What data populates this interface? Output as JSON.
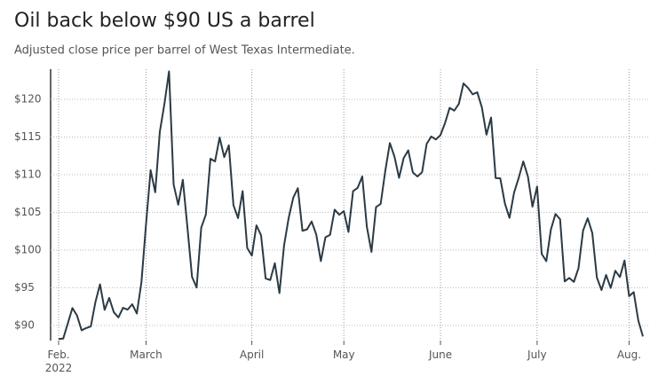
{
  "chart_data": {
    "type": "line",
    "title": "Oil back below $90 US a barrel",
    "subtitle": "Adjusted close price per barrel of West Texas Intermediate.",
    "categories": [
      "Feb.\n2022",
      null,
      null,
      null,
      null,
      null,
      null,
      null,
      null,
      null,
      null,
      null,
      null,
      null,
      null,
      null,
      null,
      null,
      null,
      "March",
      null,
      null,
      null,
      null,
      null,
      null,
      null,
      null,
      null,
      null,
      null,
      null,
      null,
      null,
      null,
      null,
      null,
      null,
      null,
      null,
      null,
      null,
      "April",
      null,
      null,
      null,
      null,
      null,
      null,
      null,
      null,
      null,
      null,
      null,
      null,
      null,
      null,
      null,
      null,
      null,
      null,
      null,
      "May",
      null,
      null,
      null,
      null,
      null,
      null,
      null,
      null,
      null,
      null,
      null,
      null,
      null,
      null,
      null,
      null,
      null,
      null,
      null,
      null,
      "June",
      null,
      null,
      null,
      null,
      null,
      null,
      null,
      null,
      null,
      null,
      null,
      null,
      null,
      null,
      null,
      null,
      null,
      null,
      null,
      null,
      "July",
      null,
      null,
      null,
      null,
      null,
      null,
      null,
      null,
      null,
      null,
      null,
      null,
      null,
      null,
      null,
      null,
      null,
      null,
      null,
      "Aug.",
      null,
      null,
      null
    ],
    "values": [
      88.2,
      88.26,
      90.27,
      92.31,
      91.32,
      89.36,
      89.66,
      89.88,
      93.1,
      95.46,
      92.07,
      93.66,
      91.76,
      91.07,
      92.35,
      92.1,
      92.81,
      91.59,
      95.72,
      103.41,
      110.6,
      107.67,
      115.68,
      119.4,
      123.7,
      108.7,
      106.02,
      109.33,
      103.01,
      96.44,
      95.04,
      102.98,
      104.7,
      112.12,
      111.76,
      114.93,
      112.34,
      113.9,
      105.96,
      104.24,
      107.82,
      100.28,
      99.27,
      103.28,
      101.96,
      96.23,
      96.03,
      98.26,
      94.29,
      100.6,
      104.25,
      106.95,
      108.21,
      102.56,
      102.75,
      103.79,
      102.07,
      98.54,
      101.7,
      102.02,
      105.36,
      104.69,
      105.17,
      102.41,
      107.81,
      108.26,
      109.77,
      103.09,
      99.76,
      105.71,
      106.13,
      110.49,
      114.2,
      112.4,
      109.59,
      112.21,
      113.23,
      110.29,
      109.77,
      110.33,
      114.09,
      115.07,
      114.67,
      115.26,
      116.87,
      118.87,
      118.5,
      119.41,
      122.11,
      121.51,
      120.67,
      120.93,
      118.93,
      115.31,
      117.59,
      109.56,
      109.52,
      106.19,
      104.27,
      107.62,
      109.57,
      111.76,
      109.78,
      105.76,
      108.43,
      99.5,
      98.53,
      102.73,
      104.79,
      104.09,
      95.84,
      96.3,
      95.78,
      97.59,
      102.6,
      104.22,
      102.26,
      96.35,
      94.7,
      96.7,
      94.98,
      97.26,
      96.42,
      98.62,
      93.89,
      94.42,
      90.66,
      88.54
    ],
    "color": "#2b3a44",
    "ylim": [
      88,
      124
    ],
    "yticks": [
      {
        "value": 90,
        "label": "$90"
      },
      {
        "value": 95,
        "label": "$95"
      },
      {
        "value": 100,
        "label": "$100"
      },
      {
        "value": 105,
        "label": "$105"
      },
      {
        "value": 110,
        "label": "$110"
      },
      {
        "value": 115,
        "label": "$115"
      },
      {
        "value": 120,
        "label": "$120"
      }
    ],
    "grid": true
  }
}
